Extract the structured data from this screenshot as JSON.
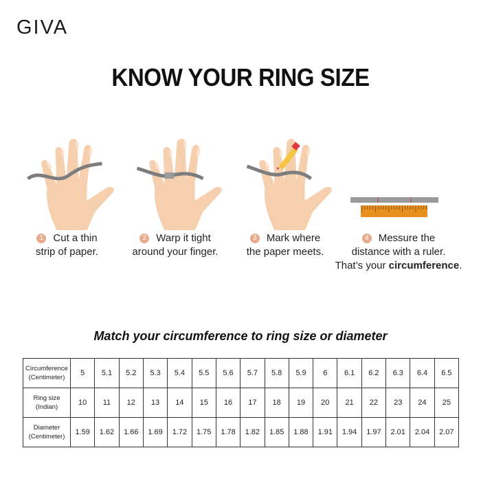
{
  "brand": "GIVA",
  "title": "KNOW YOUR RING SIZE",
  "steps": [
    {
      "number": "1",
      "line1": "Cut a thin",
      "line2": "strip of paper."
    },
    {
      "number": "2",
      "line1": "Warp it tight",
      "line2": "around your finger."
    },
    {
      "number": "3",
      "line1": "Mark where",
      "line2": "the paper meets."
    },
    {
      "number": "4",
      "line1": "Messure the",
      "line2": "distance with a ruler.",
      "line3_prefix": "That’s your ",
      "line3_bold": "circumference",
      "line3_suffix": "."
    }
  ],
  "subtitle": "Match your circumference to ring size or diameter",
  "table": {
    "rows": [
      {
        "label1": "Circumference",
        "label2": "(Centimeter)",
        "values": [
          "5",
          "5.1",
          "5.2",
          "5.3",
          "5.4",
          "5.5",
          "5.6",
          "5.7",
          "5.8",
          "5.9",
          "6",
          "6.1",
          "6.2",
          "6.3",
          "6.4",
          "6.5"
        ]
      },
      {
        "label1": "Ring size",
        "label2": "(Indian)",
        "values": [
          "10",
          "11",
          "12",
          "13",
          "14",
          "15",
          "16",
          "17",
          "18",
          "19",
          "20",
          "21",
          "22",
          "23",
          "24",
          "25"
        ]
      },
      {
        "label1": "Diameter",
        "label2": "(Centimeter)",
        "values": [
          "1.59",
          "1.62",
          "1.66",
          "1.69",
          "1.72",
          "1.75",
          "1.78",
          "1.82",
          "1.85",
          "1.88",
          "1.91",
          "1.94",
          "1.97",
          "2.01",
          "2.04",
          "2.07"
        ]
      }
    ]
  },
  "colors": {
    "skin": "#f6cfae",
    "paper": "#8a8a8a",
    "ruler": "#e8901e",
    "step_badge": "#e6ab8c"
  }
}
